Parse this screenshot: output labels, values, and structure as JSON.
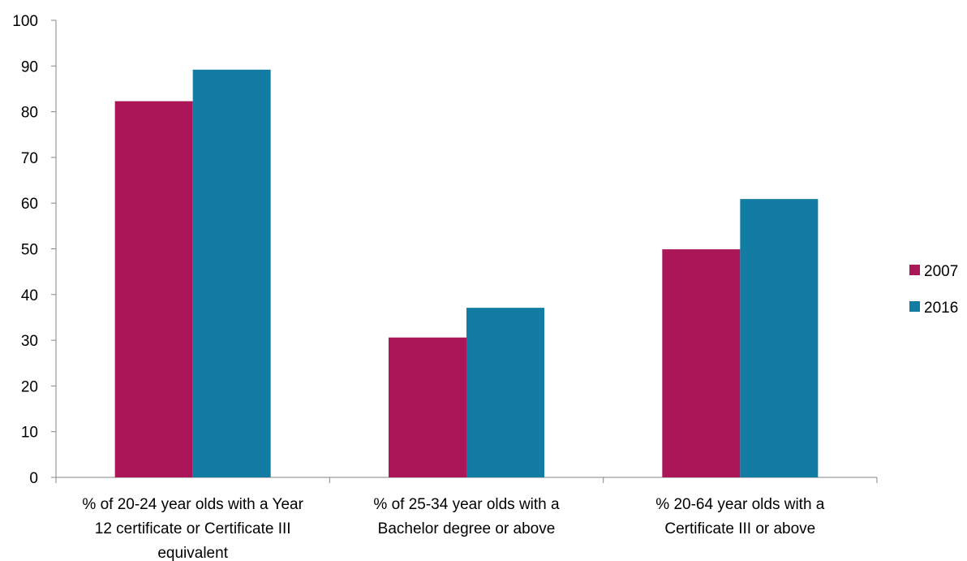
{
  "chart_data": {
    "type": "bar",
    "categories": [
      [
        "% of 20-24 year olds with a Year",
        "12 certificate or Certificate III",
        "equivalent"
      ],
      [
        "% of 25-34 year olds with a",
        "Bachelor degree or above"
      ],
      [
        "% 20-64 year olds with a",
        "Certificate III or above"
      ]
    ],
    "series": [
      {
        "name": "2007",
        "values": [
          82.3,
          30.6,
          49.9
        ],
        "color": "#ab1659"
      },
      {
        "name": "2016",
        "values": [
          89.2,
          37.1,
          60.9
        ],
        "color": "#137ca2"
      }
    ],
    "ylim": [
      0,
      100
    ],
    "yticks": [
      "0",
      "10",
      "20",
      "30",
      "40",
      "50",
      "60",
      "70",
      "80",
      "90",
      "100"
    ],
    "grid": false,
    "legend": "right",
    "title": "",
    "xlabel": "",
    "ylabel": ""
  }
}
